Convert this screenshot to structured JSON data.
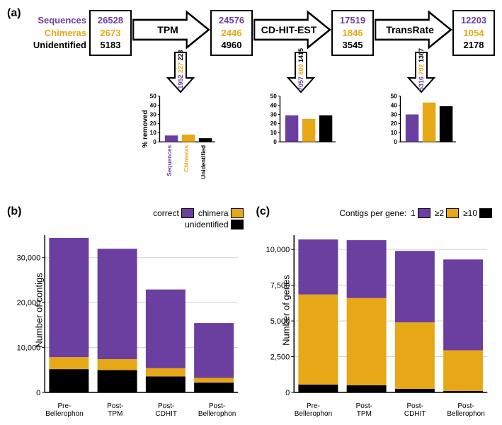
{
  "colors": {
    "purple": "#6b3fa0",
    "gold": "#e6a817",
    "black": "#000000",
    "grid": "#d0d0d0",
    "bg": "#ffffff"
  },
  "panelA": {
    "label": "(a)",
    "rowLabels": {
      "seq": "Sequences",
      "chi": "Chimeras",
      "uni": "Unidentified"
    },
    "arrows": [
      "TPM",
      "CD-HIT-EST",
      "TransRate"
    ],
    "boxes": [
      {
        "seq": "26528",
        "chi": "2673",
        "uni": "5183"
      },
      {
        "seq": "24576",
        "chi": "2446",
        "uni": "4960"
      },
      {
        "seq": "17519",
        "chi": "1846",
        "uni": "3545"
      },
      {
        "seq": "12203",
        "chi": "1054",
        "uni": "2178"
      }
    ],
    "drops": [
      {
        "seq": "1952",
        "chi": "227",
        "uni": "223",
        "pct": {
          "seq": 7,
          "chi": 8,
          "uni": 4
        }
      },
      {
        "seq": "7057",
        "chi": "600",
        "uni": "1415",
        "pct": {
          "seq": 29,
          "chi": 25,
          "uni": 29
        }
      },
      {
        "seq": "5316",
        "chi": "792",
        "uni": "1367",
        "pct": {
          "seq": 30,
          "chi": 43,
          "uni": 39
        }
      }
    ],
    "miniY": {
      "label": "% removed",
      "max": 50,
      "ticks": [
        0,
        10,
        20,
        30,
        40,
        50
      ]
    },
    "miniXLabels": [
      "Sequences",
      "Chimeras",
      "Unidentified"
    ]
  },
  "panelB": {
    "label": "(b)",
    "yLabel": "Number of contigs",
    "yMax": 35000,
    "yTicks": [
      0,
      10000,
      20000,
      30000
    ],
    "yTickLabels": [
      "0",
      "10,000",
      "20,000",
      "30,000"
    ],
    "legend": [
      {
        "text": "correct",
        "color": "#6b3fa0"
      },
      {
        "text": "chimera",
        "color": "#e6a817"
      },
      {
        "text": "unidentified",
        "color": "#000000"
      }
    ],
    "x": [
      "Pre-\nBellerophon",
      "Post-\nTPM",
      "Post-\nCDHIT",
      "Post-\nBellerophon"
    ],
    "stacks": [
      {
        "uni": 5183,
        "chi": 2673,
        "seq": 26528
      },
      {
        "uni": 4960,
        "chi": 2446,
        "seq": 24576
      },
      {
        "uni": 3545,
        "chi": 1846,
        "seq": 17519
      },
      {
        "uni": 2178,
        "chi": 1054,
        "seq": 12203
      }
    ]
  },
  "panelC": {
    "label": "(c)",
    "yLabel": "Number of genes",
    "yMax": 11000,
    "yTicks": [
      0,
      2500,
      5000,
      7500,
      10000
    ],
    "yTickLabels": [
      "0",
      "2,500",
      "5,000",
      "7,500",
      "10,000"
    ],
    "legendTitle": "Contigs per gene:",
    "legend": [
      {
        "text": "1",
        "color": "#6b3fa0"
      },
      {
        "text": "≥2",
        "color": "#e6a817"
      },
      {
        "text": "≥10",
        "color": "#000000"
      }
    ],
    "x": [
      "Pre-\nBellerophon",
      "Post-\nTPM",
      "Post-\nCDHIT",
      "Post-\nBellerophon"
    ],
    "stacks": [
      {
        "ten": 550,
        "two": 6300,
        "one": 3850
      },
      {
        "ten": 500,
        "two": 6100,
        "one": 4050
      },
      {
        "ten": 250,
        "two": 4650,
        "one": 5000
      },
      {
        "ten": 100,
        "two": 2850,
        "one": 6350
      }
    ]
  }
}
